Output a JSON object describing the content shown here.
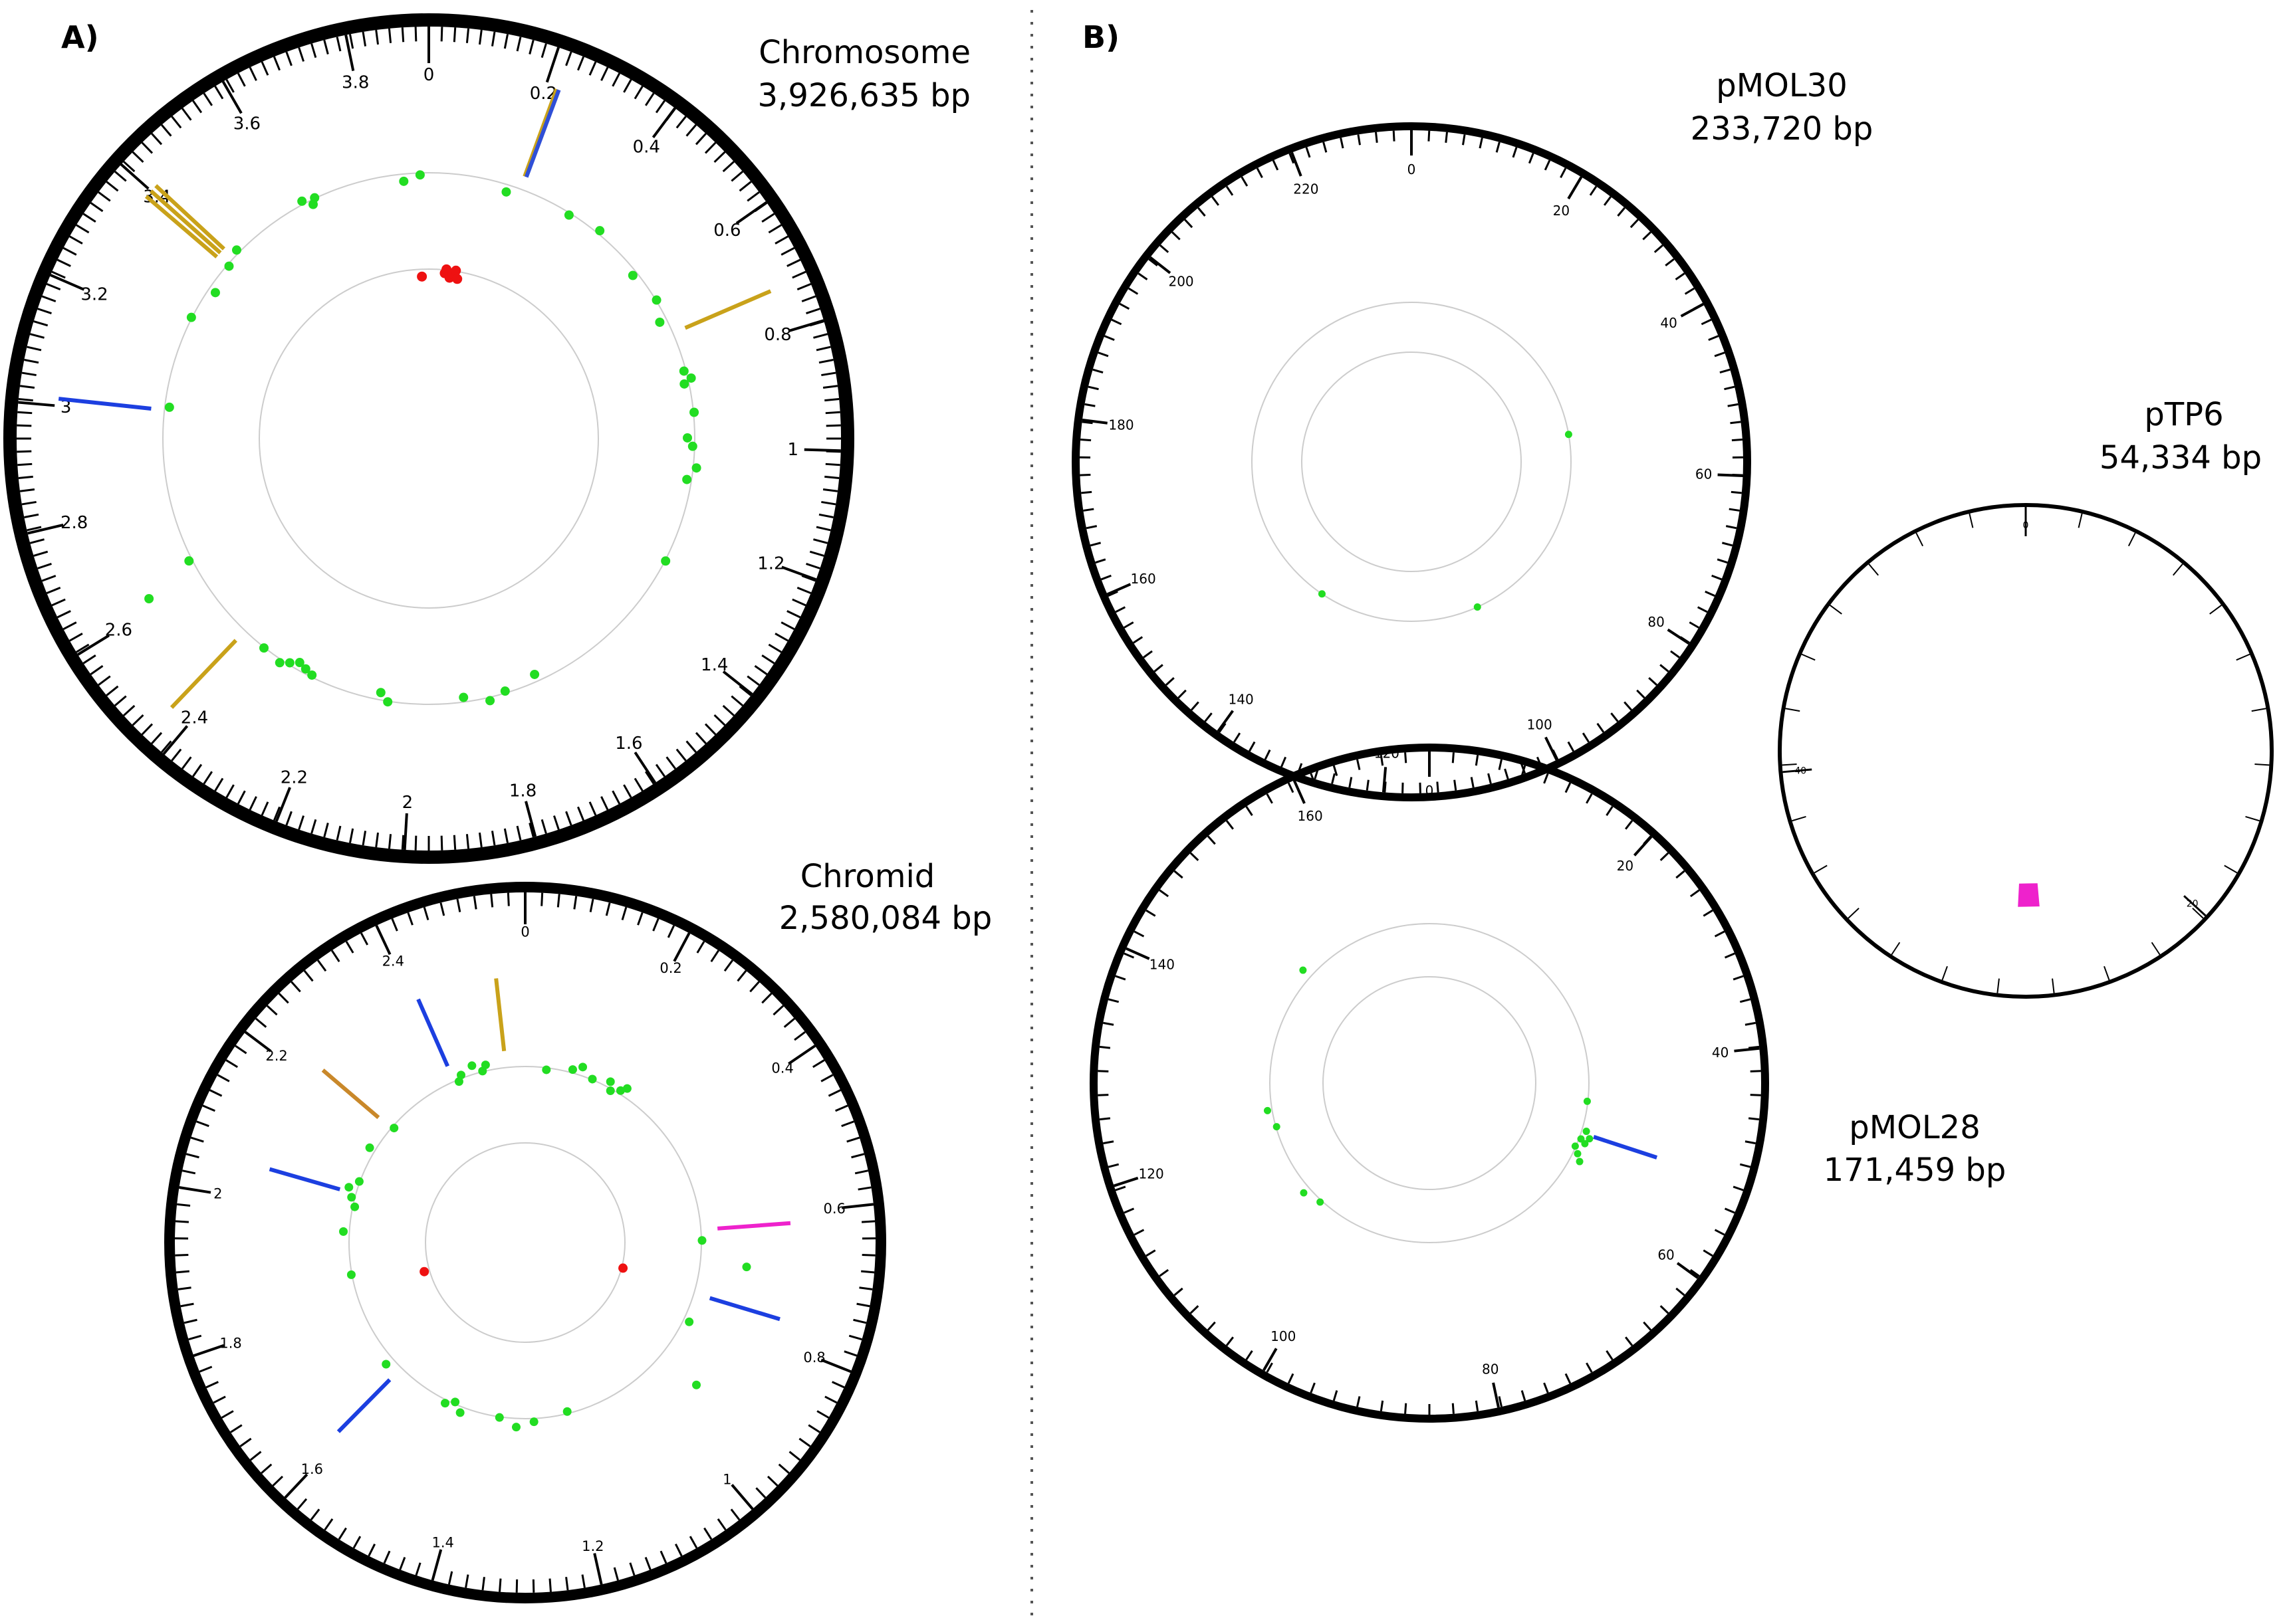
{
  "panels": [
    {
      "letter": "A)"
    },
    {
      "letter": "B)"
    }
  ],
  "plasmids": [
    {
      "id": "chromosome",
      "name": "Chromosome",
      "size": "3,926,635 bp",
      "scale_max": 3.926635,
      "tick_labels": [
        "0",
        "0.2",
        "0.4",
        "0.6",
        "0.8",
        "1",
        "1.2",
        "1.4",
        "1.6",
        "1.8",
        "2",
        "2.2",
        "2.4",
        "2.6",
        "2.8",
        "3",
        "3.2",
        "3.4",
        "3.6",
        "3.8"
      ],
      "tick_values": [
        0,
        0.2,
        0.4,
        0.6,
        0.8,
        1,
        1.2,
        1.4,
        1.6,
        1.8,
        2,
        2.2,
        2.4,
        2.6,
        2.8,
        3,
        3.2,
        3.4,
        3.6,
        3.8
      ],
      "features": [
        {
          "pos": 0.219,
          "color": "#c9a21a"
        },
        {
          "pos": 0.223,
          "color": "#2f4fd6"
        },
        {
          "pos": 0.727,
          "color": "#c9a21a"
        },
        {
          "pos": 2.44,
          "color": "#c9a21a"
        },
        {
          "pos": 3.012,
          "color": "#1c3fe0"
        },
        {
          "pos": 3.388,
          "color": "#c9a21a"
        },
        {
          "pos": 3.4,
          "color": "#c9a21a"
        },
        {
          "pos": 3.412,
          "color": "#c9a21a"
        }
      ],
      "green_dots": [
        3.866,
        3.906,
        3.62,
        3.64,
        3.65,
        0.19,
        0.35,
        0.43,
        0.56,
        0.64,
        0.69,
        0.82,
        0.84,
        0.85,
        0.92,
        0.98,
        1.0,
        1.05,
        1.08,
        1.28,
        1.7,
        1.78,
        1.82,
        1.88,
        2.06,
        2.08,
        2.25,
        2.33,
        2.27,
        2.38,
        2.29,
        2.31,
        2.65,
        3.02,
        3.24,
        3.32,
        3.39,
        3.43
      ],
      "green_outer_dots": [
        2.62
      ],
      "red_dots": [
        3.9,
        0.06,
        0.065,
        0.08,
        0.09,
        0.1,
        0.11
      ]
    },
    {
      "id": "chromid",
      "name": "Chromid",
      "size": "2,580,084 bp",
      "scale_max": 2.580084,
      "tick_labels": [
        "0",
        "0.2",
        "0.4",
        "0.6",
        "0.8",
        "1",
        "1.2",
        "1.4",
        "1.6",
        "1.8",
        "2",
        "2.2",
        "2.4"
      ],
      "tick_values": [
        0,
        0.2,
        0.4,
        0.6,
        0.8,
        1,
        1.2,
        1.4,
        1.6,
        1.8,
        2,
        2.2,
        2.4
      ],
      "features": [
        {
          "pos": 2.535,
          "color": "#c9a21a"
        },
        {
          "pos": 2.41,
          "color": "#1c3fe0"
        },
        {
          "pos": 2.225,
          "color": "#c9882a"
        },
        {
          "pos": 2.05,
          "color": "#1c3fe0"
        },
        {
          "pos": 0.615,
          "color": "#ee22cc"
        },
        {
          "pos": 0.765,
          "color": "#1c3fe0"
        },
        {
          "pos": 1.61,
          "color": "#1c3fe0"
        }
      ],
      "green_dots": [
        2.42,
        2.43,
        2.46,
        2.48,
        2.49,
        0.05,
        0.11,
        0.13,
        0.16,
        0.2,
        0.21,
        0.23,
        0.24,
        0.64,
        0.83,
        1.19,
        1.27,
        1.31,
        1.35,
        1.44,
        1.46,
        1.48,
        1.64,
        1.86,
        1.96,
        2.02,
        2.04,
        2.06,
        2.08,
        2.16,
        2.23
      ],
      "green_outer_dots": [
        0.69,
        0.93
      ],
      "red_dots": [
        0.75,
        1.82
      ]
    },
    {
      "id": "pmol30",
      "name": "pMOL30",
      "size": "233,720 bp",
      "scale_max": 233.72,
      "tick_labels": [
        "0",
        "20",
        "40",
        "60",
        "80",
        "100",
        "120",
        "140",
        "160",
        "180",
        "200",
        "220"
      ],
      "tick_values": [
        0,
        20,
        40,
        60,
        80,
        100,
        120,
        140,
        160,
        180,
        200,
        220
      ],
      "features": [],
      "green_dots": [],
      "green_outer_dots": [],
      "free_green_dots": [
        52.0,
        101.0,
        139.0
      ],
      "red_dots": []
    },
    {
      "id": "ptp6",
      "name": "pTP6",
      "size": "54,334 bp",
      "scale_max": 54.334,
      "tick_labels": [
        "0",
        "20",
        "40"
      ],
      "tick_values": [
        0,
        20,
        40
      ],
      "features": [
        {
          "start": 26.4,
          "end": 27.6,
          "color": "#ee22cc"
        }
      ],
      "green_dots": [],
      "green_outer_dots": [],
      "red_dots": []
    },
    {
      "id": "pmol28",
      "name": "pMOL28",
      "size": "171,459 bp",
      "scale_max": 171.459,
      "tick_labels": [
        "0",
        "20",
        "40",
        "60",
        "80",
        "100",
        "120",
        "140",
        "160"
      ],
      "tick_values": [
        0,
        20,
        40,
        60,
        80,
        100,
        120,
        140,
        160
      ],
      "features": [
        {
          "pos": 51.5,
          "color": "#1c3fe0"
        }
      ],
      "green_dots": [
        46.0,
        51.0,
        52.0,
        52.5,
        53.0,
        54.0,
        55.0,
        56.0,
        106.0,
        109.0,
        121.0,
        124.0,
        148.5
      ],
      "green_outer_dots": [],
      "red_dots": []
    }
  ]
}
